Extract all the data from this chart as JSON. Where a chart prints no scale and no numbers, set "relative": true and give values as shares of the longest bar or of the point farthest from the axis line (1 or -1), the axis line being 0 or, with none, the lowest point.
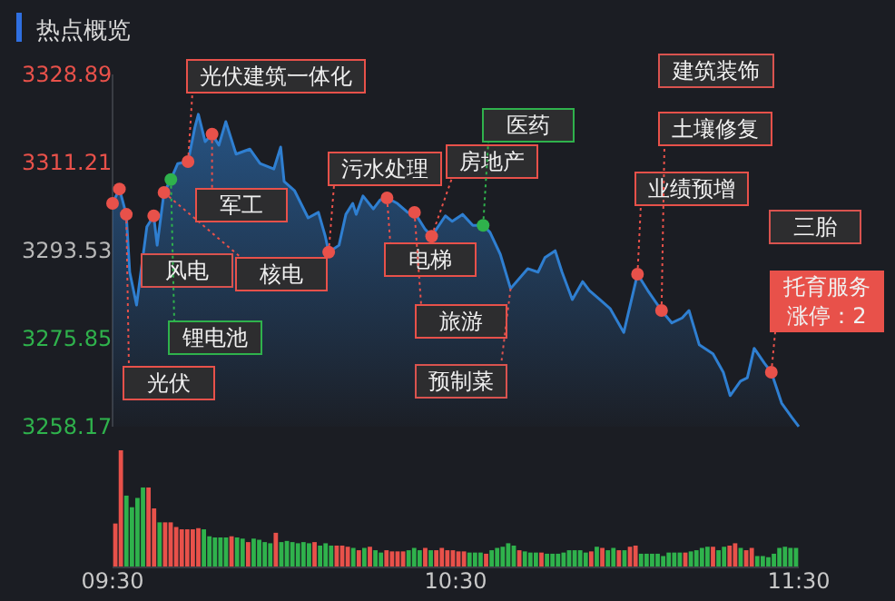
{
  "chart_data": [
    {
      "type": "area",
      "title": "热点概览",
      "xlim": [
        9.5,
        11.5
      ],
      "xticks": [
        {
          "value": 9.5,
          "label": "09:30"
        },
        {
          "value": 10.5,
          "label": "10:30"
        },
        {
          "value": 11.5,
          "label": "11:30"
        }
      ],
      "ylim": [
        3258.17,
        3328.89
      ],
      "yticks": [
        3258.17,
        3275.85,
        3293.53,
        3311.21,
        3328.89
      ],
      "series": [
        {
          "type": "area",
          "color": "#2f7fd1",
          "x": [
            9.5,
            9.52,
            9.54,
            9.55,
            9.57,
            9.6,
            9.62,
            9.63,
            9.65,
            9.67,
            9.69,
            9.72,
            9.74,
            9.75,
            9.77,
            9.79,
            9.81,
            9.83,
            9.86,
            9.9,
            9.93,
            9.97,
            9.99,
            10.0,
            10.03,
            10.07,
            10.1,
            10.12,
            10.13,
            10.16,
            10.18,
            10.2,
            10.21,
            10.23,
            10.26,
            10.28,
            10.3,
            10.33,
            10.36,
            10.38,
            10.41,
            10.43,
            10.47,
            10.49,
            10.52,
            10.55,
            10.58,
            10.6,
            10.63,
            10.66,
            10.71,
            10.74,
            10.76,
            10.79,
            10.81,
            10.84,
            10.87,
            10.89,
            10.92,
            10.95,
            10.99,
            11.03,
            11.06,
            11.1,
            11.13,
            11.16,
            11.18,
            11.21,
            11.25,
            11.28,
            11.3,
            11.33,
            11.35,
            11.37,
            11.4,
            11.42,
            11.45,
            11.48,
            11.5
          ],
          "values": [
            3303.0,
            3305.9,
            3300.8,
            3289.2,
            3282.6,
            3298.3,
            3300.5,
            3294.6,
            3305.2,
            3307.8,
            3311.0,
            3311.4,
            3318.3,
            3320.9,
            3315.4,
            3316.9,
            3314.7,
            3319.4,
            3312.9,
            3313.9,
            3311.0,
            3309.9,
            3314.3,
            3307.4,
            3305.6,
            3300.1,
            3301.2,
            3296.4,
            3293.2,
            3294.6,
            3300.8,
            3303.0,
            3300.8,
            3304.5,
            3301.9,
            3303.7,
            3304.1,
            3303.0,
            3301.2,
            3301.2,
            3297.9,
            3296.4,
            3300.5,
            3299.4,
            3300.8,
            3298.6,
            3298.6,
            3297.2,
            3292.8,
            3285.9,
            3289.9,
            3289.2,
            3292.1,
            3293.5,
            3289.2,
            3283.7,
            3287.3,
            3285.5,
            3283.7,
            3281.9,
            3277.1,
            3288.8,
            3285.5,
            3281.5,
            3279.0,
            3280.0,
            3281.5,
            3274.6,
            3272.8,
            3269.1,
            3264.4,
            3267.3,
            3268.0,
            3273.9,
            3270.9,
            3269.1,
            3262.9,
            3260.0,
            3258.2
          ]
        },
        {
          "type": "scatter",
          "color": "#e8514a",
          "x": [
            9.5,
            9.52,
            9.54,
            9.62,
            9.65,
            9.72,
            9.79,
            10.13,
            10.3,
            10.38,
            10.43,
            11.03,
            11.1,
            11.42
          ],
          "values": [
            3303.0,
            3305.9,
            3300.8,
            3300.5,
            3305.2,
            3311.4,
            3316.9,
            3293.2,
            3304.1,
            3301.2,
            3296.4,
            3288.8,
            3281.5,
            3269.1
          ]
        },
        {
          "type": "scatter",
          "color": "#2fb24c",
          "x": [
            9.67,
            10.58
          ],
          "values": [
            3307.8,
            3298.6
          ]
        }
      ],
      "annotations": [
        "风电",
        {
          "text": "光伏",
          "x": 9.54,
          "y": 3300.8
        },
        {
          "text": "锂电池",
          "x": 9.67,
          "y": 3307.8
        },
        {
          "text": "核电",
          "x": 9.65,
          "y": 3305.2
        },
        {
          "text": "光伏建筑一体化",
          "x": 9.72,
          "y": 3311.4
        },
        {
          "text": "军工",
          "x": 9.79,
          "y": 3316.9
        },
        {
          "text": "污水处理",
          "x": 10.13,
          "y": 3293.2
        },
        {
          "text": "电梯",
          "x": 10.3,
          "y": 3304.1
        },
        {
          "text": "旅游",
          "x": 10.38,
          "y": 3301.2
        },
        {
          "text": "房地产",
          "x": 10.43,
          "y": 3296.4
        },
        {
          "text": "预制菜",
          "x": 10.66,
          "y": 3285.9
        },
        {
          "text": "医药",
          "x": 10.58,
          "y": 3298.6
        },
        {
          "text": "业绩预增",
          "x": 11.03,
          "y": 3288.8
        },
        {
          "text": "土壤修复",
          "x": 11.1,
          "y": 3281.5
        },
        "建筑装饰",
        "三胎",
        {
          "text": "托育服务涨停：2",
          "x": 11.42,
          "y": 3269.1
        }
      ]
    },
    {
      "type": "bar",
      "relative": true,
      "categories": [
        null,
        null,
        null,
        null,
        null,
        null,
        null,
        null,
        null,
        null,
        null,
        null,
        null,
        null,
        null,
        null,
        null,
        null,
        null,
        null,
        null,
        null,
        null,
        null,
        null,
        null,
        null,
        null,
        null,
        null,
        null,
        null,
        null,
        null,
        null,
        null,
        null,
        null,
        null,
        null,
        null,
        null,
        null,
        null,
        null,
        null,
        null,
        null,
        null,
        null,
        null,
        null,
        null,
        null,
        null,
        null,
        null,
        null,
        null,
        null,
        null,
        null,
        null,
        null,
        null,
        null,
        null,
        null,
        null,
        null,
        null,
        null,
        null,
        null,
        null,
        null,
        null,
        null,
        null,
        null,
        null,
        null,
        null,
        null,
        null,
        null,
        null,
        null,
        null,
        null,
        null,
        null,
        null,
        null,
        null,
        null,
        null,
        null,
        null,
        null,
        null,
        null,
        null,
        null,
        null,
        null,
        null,
        null,
        null,
        null,
        null,
        null,
        null,
        null,
        null,
        null,
        null,
        null,
        null,
        null,
        null,
        null,
        null,
        null
      ],
      "values": [
        0.37,
        1,
        0.61,
        0.51,
        0.59,
        0.68,
        0.68,
        0.5,
        0.38,
        0.38,
        0.38,
        0.34,
        0.32,
        0.32,
        0.32,
        0.33,
        0.32,
        0.26,
        0.25,
        0.25,
        0.25,
        0.26,
        0.25,
        0.24,
        0.21,
        0.24,
        0.23,
        0.21,
        0.2,
        0.29,
        0.21,
        0.22,
        0.21,
        0.2,
        0.21,
        0.2,
        0.21,
        0.18,
        0.2,
        0.18,
        0.18,
        0.18,
        0.17,
        0.16,
        0.14,
        0.16,
        0.17,
        0.14,
        0.12,
        0.14,
        0.13,
        0.13,
        0.13,
        0.14,
        0.16,
        0.14,
        0.16,
        0.14,
        0.14,
        0.16,
        0.14,
        0.14,
        0.13,
        0.13,
        0.12,
        0.12,
        0.12,
        0.11,
        0.14,
        0.16,
        0.17,
        0.2,
        0.18,
        0.14,
        0.13,
        0.12,
        0.12,
        0.12,
        0.11,
        0.11,
        0.11,
        0.12,
        0.14,
        0.14,
        0.14,
        0.12,
        0.13,
        0.17,
        0.16,
        0.14,
        0.16,
        0.14,
        0.14,
        0.17,
        0.18,
        0.11,
        0.11,
        0.11,
        0.11,
        0.09,
        0.12,
        0.12,
        0.12,
        0.12,
        0.13,
        0.14,
        0.16,
        0.17,
        0.17,
        0.14,
        0.17,
        0.18,
        0.2,
        0.16,
        0.14,
        0.16,
        0.09,
        0.09,
        0.08,
        0.11,
        0.16,
        0.17,
        0.16,
        0.16
      ],
      "colors": [
        "#e8514a",
        "#e8514a",
        "#2fb24c",
        "#2fb24c",
        "#2fb24c",
        "#2fb24c",
        "#e8514a",
        "#e8514a",
        "#2fb24c",
        "#e8514a",
        "#e8514a",
        "#e8514a",
        "#e8514a",
        "#e8514a",
        "#e8514a",
        "#e8514a",
        "#2fb24c",
        "#2fb24c",
        "#2fb24c",
        "#2fb24c",
        "#2fb24c",
        "#e8514a",
        "#2fb24c",
        "#2fb24c",
        "#e8514a",
        "#2fb24c",
        "#2fb24c",
        "#2fb24c",
        "#2fb24c",
        "#e8514a",
        "#2fb24c",
        "#2fb24c",
        "#2fb24c",
        "#2fb24c",
        "#2fb24c",
        "#2fb24c",
        "#e8514a",
        "#2fb24c",
        "#2fb24c",
        "#2fb24c",
        "#e8514a",
        "#e8514a",
        "#e8514a",
        "#2fb24c",
        "#e8514a",
        "#2fb24c",
        "#e8514a",
        "#2fb24c",
        "#2fb24c",
        "#e8514a",
        "#e8514a",
        "#e8514a",
        "#e8514a",
        "#2fb24c",
        "#2fb24c",
        "#2fb24c",
        "#e8514a",
        "#2fb24c",
        "#e8514a",
        "#e8514a",
        "#e8514a",
        "#e8514a",
        "#e8514a",
        "#e8514a",
        "#2fb24c",
        "#2fb24c",
        "#2fb24c",
        "#e8514a",
        "#2fb24c",
        "#2fb24c",
        "#2fb24c",
        "#2fb24c",
        "#2fb24c",
        "#e8514a",
        "#2fb24c",
        "#2fb24c",
        "#2fb24c",
        "#e8514a",
        "#2fb24c",
        "#2fb24c",
        "#2fb24c",
        "#2fb24c",
        "#2fb24c",
        "#2fb24c",
        "#2fb24c",
        "#2fb24c",
        "#e8514a",
        "#2fb24c",
        "#e8514a",
        "#2fb24c",
        "#2fb24c",
        "#e8514a",
        "#2fb24c",
        "#e8514a",
        "#e8514a",
        "#2fb24c",
        "#2fb24c",
        "#2fb24c",
        "#2fb24c",
        "#2fb24c",
        "#2fb24c",
        "#2fb24c",
        "#2fb24c",
        "#e8514a",
        "#2fb24c",
        "#2fb24c",
        "#2fb24c",
        "#2fb24c",
        "#e8514a",
        "#2fb24c",
        "#2fb24c",
        "#e8514a",
        "#e8514a",
        "#2fb24c",
        "#e8514a",
        "#e8514a",
        "#2fb24c",
        "#2fb24c",
        "#2fb24c",
        "#2fb24c",
        "#2fb24c",
        "#2fb24c",
        "#2fb24c",
        "#2fb24c"
      ]
    }
  ]
}
